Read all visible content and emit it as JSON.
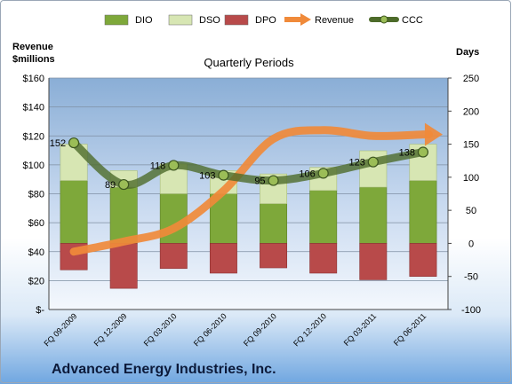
{
  "company": "Advanced Energy Industries, Inc.",
  "chart_data": {
    "type": "bar",
    "title": "Quarterly Periods",
    "left_axis_label": [
      "Revenue",
      "$millions"
    ],
    "right_axis_label": "Days",
    "categories": [
      "FQ 09-2009",
      "FQ 12-2009",
      "FQ 03-2010",
      "FQ 06-2010",
      "FQ 09-2010",
      "FQ 12-2010",
      "FQ 03-2011",
      "FQ 06-2011"
    ],
    "left_ylim": [
      0,
      160
    ],
    "left_ticks": [
      0,
      20,
      40,
      60,
      80,
      100,
      120,
      140,
      160
    ],
    "left_tick_labels": [
      "$-",
      "$20",
      "$40",
      "$60",
      "$80",
      "$100",
      "$120",
      "$140",
      "$160"
    ],
    "right_ylim": [
      -100,
      250
    ],
    "right_ticks": [
      -100,
      -50,
      0,
      50,
      100,
      150,
      200,
      250
    ],
    "legend_position": "top",
    "grid": true,
    "series": [
      {
        "name": "DIO",
        "type": "bar",
        "axis": "right",
        "color": "#7ea83a",
        "values": [
          95,
          85,
          75,
          75,
          60,
          80,
          85,
          95
        ]
      },
      {
        "name": "DSO",
        "type": "bar",
        "axis": "right",
        "color": "#d7e6b3",
        "values": [
          55,
          25,
          45,
          35,
          45,
          35,
          55,
          55
        ]
      },
      {
        "name": "DPO",
        "type": "bar",
        "axis": "right",
        "color": "#b84a4a",
        "values": [
          -40,
          -68,
          -38,
          -45,
          -37,
          -45,
          -55,
          -50
        ]
      },
      {
        "name": "Revenue",
        "type": "line",
        "axis": "left",
        "color": "#f08a3a",
        "values": [
          40,
          47,
          56,
          82,
          118,
          124,
          120,
          121
        ]
      },
      {
        "name": "CCC",
        "type": "line",
        "axis": "right",
        "color": "#4d6b2a",
        "values": [
          152,
          89,
          118,
          103,
          95,
          106,
          123,
          138
        ],
        "labels": [
          "152",
          "89",
          "118",
          "103",
          "95",
          "106",
          "123",
          "138"
        ]
      }
    ]
  }
}
